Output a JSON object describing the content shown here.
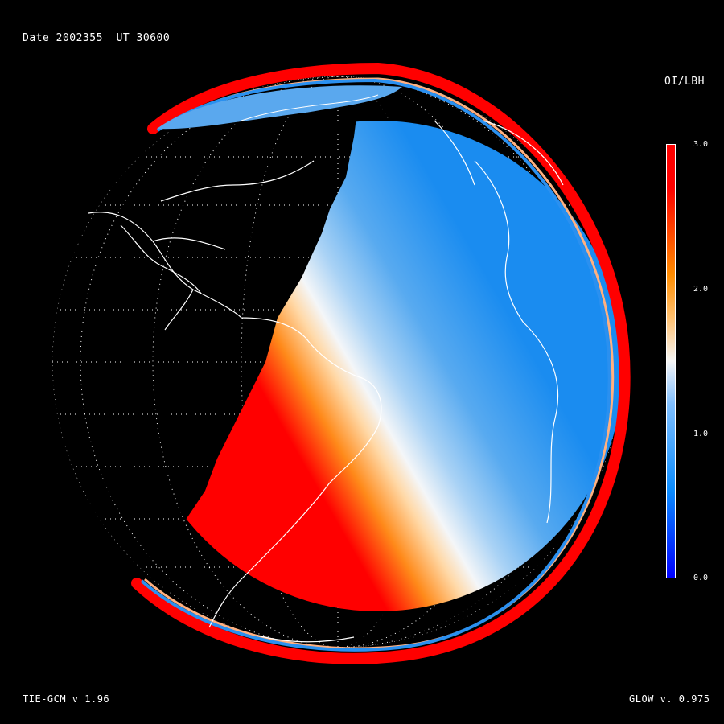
{
  "header": {
    "date_text": "Date 2002355  UT 30600"
  },
  "colorbar": {
    "title": "OI/LBH",
    "ticks": [
      "3.0",
      "2.0",
      "1.0",
      "0.0"
    ],
    "range": [
      0.0,
      3.0
    ],
    "colors": {
      "low": "#0000ff",
      "lowmid": "#0a8cff",
      "mid_low": "#7fbfff",
      "mid": "#f5f5f5",
      "mid_high": "#ffc070",
      "high_mid": "#ff8c00",
      "high": "#ff0000"
    }
  },
  "map": {
    "projection": "orthographic",
    "background": "#000000",
    "grid_color": "#ffffff",
    "coastline_color": "#ffffff"
  },
  "footer": {
    "model_left": "TIE-GCM v 1.96",
    "model_right": "GLOW v. 0.975"
  }
}
